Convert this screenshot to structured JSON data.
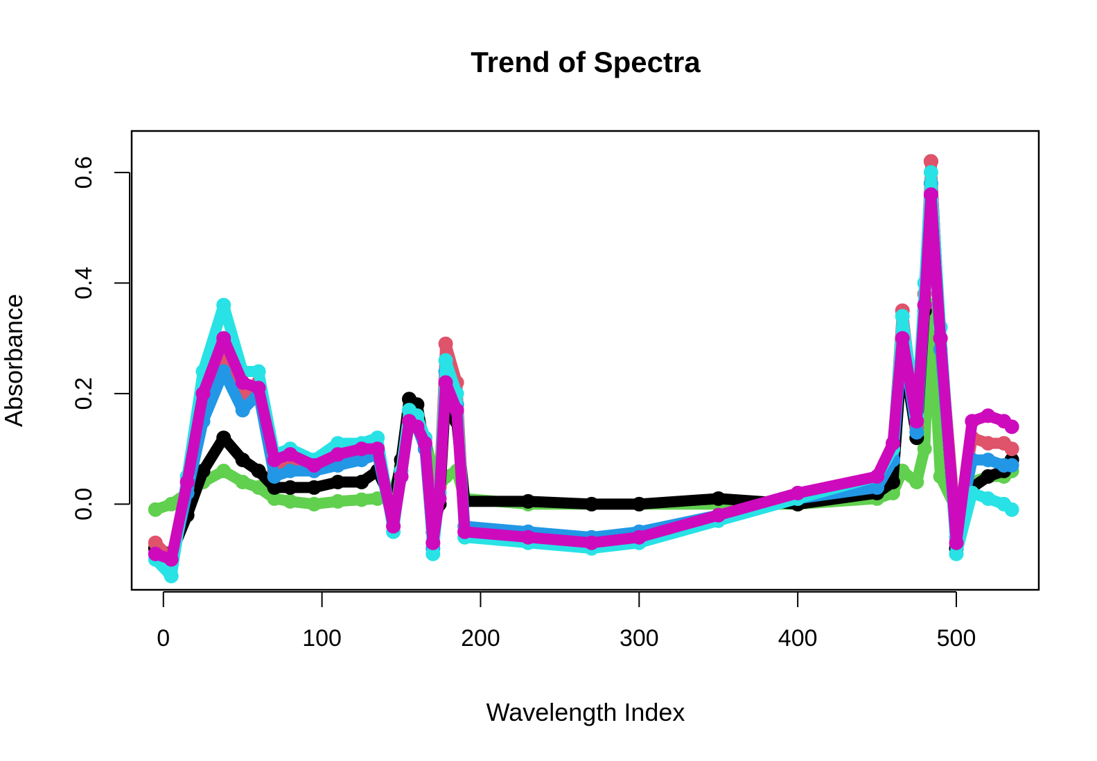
{
  "chart_data": {
    "type": "line",
    "title": "Trend of Spectra",
    "xlabel": "Wavelength Index",
    "ylabel": "Absorbance",
    "xlim": [
      -20,
      552
    ],
    "ylim": [
      -0.155,
      0.675
    ],
    "xticks": [
      {
        "value": 0,
        "label": "0"
      },
      {
        "value": 100,
        "label": "100"
      },
      {
        "value": 200,
        "label": "200"
      },
      {
        "value": 300,
        "label": "300"
      },
      {
        "value": 400,
        "label": "400"
      },
      {
        "value": 500,
        "label": "500"
      }
    ],
    "yticks": [
      {
        "value": 0.0,
        "label": "0.0"
      },
      {
        "value": 0.2,
        "label": "0.2"
      },
      {
        "value": 0.4,
        "label": "0.4"
      },
      {
        "value": 0.6,
        "label": "0.6"
      }
    ],
    "grid": false,
    "legend": "none",
    "series_colors": [
      "#000000",
      "#DF536B",
      "#61D04F",
      "#2297E6",
      "#28E2E5",
      "#CD0BBC"
    ],
    "series": [
      {
        "color": "#61D04F",
        "x": [
          -5,
          5,
          15,
          25,
          38,
          50,
          60,
          70,
          80,
          95,
          110,
          125,
          135,
          145,
          150,
          155,
          160,
          165,
          170,
          174,
          178,
          185,
          190,
          230,
          270,
          300,
          350,
          400,
          450,
          460,
          466,
          475,
          480,
          484,
          490,
          500,
          510,
          520,
          530,
          535
        ],
        "y": [
          -0.01,
          0.0,
          0.02,
          0.04,
          0.06,
          0.04,
          0.03,
          0.01,
          0.005,
          0.0,
          0.005,
          0.008,
          0.01,
          0.02,
          0.07,
          0.14,
          0.15,
          0.12,
          0.06,
          0.03,
          0.05,
          0.06,
          0.01,
          0.0,
          0.0,
          0.0,
          0.0,
          0.0,
          0.01,
          0.02,
          0.06,
          0.04,
          0.1,
          0.36,
          0.05,
          -0.01,
          0.04,
          0.05,
          0.05,
          0.06
        ]
      },
      {
        "color": "#000000",
        "x": [
          -5,
          5,
          15,
          25,
          38,
          50,
          60,
          70,
          80,
          95,
          110,
          125,
          135,
          145,
          150,
          155,
          160,
          165,
          170,
          174,
          178,
          185,
          190,
          230,
          270,
          300,
          350,
          400,
          450,
          460,
          466,
          475,
          480,
          484,
          490,
          500,
          510,
          520,
          530,
          535
        ],
        "y": [
          -0.08,
          -0.09,
          -0.02,
          0.06,
          0.12,
          0.08,
          0.06,
          0.03,
          0.03,
          0.03,
          0.04,
          0.04,
          0.06,
          0.0,
          0.08,
          0.19,
          0.18,
          0.1,
          -0.05,
          0.0,
          0.2,
          0.15,
          0.005,
          0.005,
          0.0,
          0.0,
          0.01,
          0.0,
          0.02,
          0.04,
          0.28,
          0.12,
          0.35,
          0.62,
          0.3,
          -0.08,
          0.03,
          0.05,
          0.06,
          0.08
        ]
      },
      {
        "color": "#DF536B",
        "x": [
          -5,
          5,
          15,
          25,
          38,
          50,
          60,
          70,
          80,
          95,
          110,
          125,
          135,
          145,
          150,
          155,
          160,
          165,
          170,
          174,
          178,
          185,
          190,
          230,
          270,
          300,
          350,
          400,
          450,
          460,
          466,
          475,
          480,
          484,
          490,
          500,
          510,
          520,
          530,
          535
        ],
        "y": [
          -0.07,
          -0.1,
          0.03,
          0.18,
          0.28,
          0.2,
          0.22,
          0.06,
          0.07,
          0.07,
          0.08,
          0.09,
          0.1,
          -0.04,
          0.06,
          0.17,
          0.16,
          0.12,
          -0.07,
          0.03,
          0.29,
          0.22,
          -0.05,
          -0.06,
          -0.07,
          -0.06,
          -0.02,
          0.01,
          0.04,
          0.1,
          0.35,
          0.14,
          0.38,
          0.62,
          0.3,
          -0.05,
          0.12,
          0.11,
          0.11,
          0.1
        ]
      },
      {
        "color": "#2297E6",
        "x": [
          -5,
          5,
          15,
          25,
          38,
          50,
          60,
          70,
          80,
          95,
          110,
          125,
          135,
          145,
          150,
          155,
          160,
          165,
          170,
          174,
          178,
          185,
          190,
          230,
          270,
          300,
          350,
          400,
          450,
          460,
          466,
          475,
          480,
          484,
          490,
          500,
          510,
          520,
          530,
          535
        ],
        "y": [
          -0.09,
          -0.11,
          0.02,
          0.15,
          0.24,
          0.17,
          0.2,
          0.05,
          0.06,
          0.06,
          0.07,
          0.08,
          0.09,
          -0.04,
          0.05,
          0.15,
          0.14,
          0.1,
          -0.08,
          0.02,
          0.24,
          0.18,
          -0.04,
          -0.05,
          -0.06,
          -0.05,
          -0.02,
          0.01,
          0.03,
          0.08,
          0.3,
          0.13,
          0.36,
          0.58,
          0.28,
          -0.06,
          0.08,
          0.08,
          0.07,
          0.07
        ]
      },
      {
        "color": "#28E2E5",
        "x": [
          -5,
          5,
          15,
          25,
          38,
          50,
          60,
          70,
          80,
          95,
          110,
          125,
          135,
          145,
          150,
          155,
          160,
          165,
          170,
          174,
          178,
          185,
          190,
          230,
          270,
          300,
          350,
          400,
          450,
          460,
          466,
          475,
          480,
          484,
          490,
          500,
          510,
          520,
          530,
          535
        ],
        "y": [
          -0.1,
          -0.13,
          0.05,
          0.24,
          0.36,
          0.24,
          0.24,
          0.09,
          0.1,
          0.08,
          0.11,
          0.11,
          0.12,
          -0.05,
          0.06,
          0.17,
          0.16,
          0.12,
          -0.09,
          0.02,
          0.26,
          0.2,
          -0.06,
          -0.07,
          -0.08,
          -0.07,
          -0.03,
          0.01,
          0.05,
          0.1,
          0.34,
          0.16,
          0.4,
          0.6,
          0.32,
          -0.09,
          0.02,
          0.01,
          0.0,
          -0.01
        ]
      },
      {
        "color": "#CD0BBC",
        "x": [
          -5,
          5,
          15,
          25,
          38,
          50,
          60,
          70,
          80,
          95,
          110,
          125,
          135,
          145,
          150,
          155,
          160,
          165,
          170,
          174,
          178,
          185,
          190,
          230,
          270,
          300,
          350,
          400,
          450,
          460,
          466,
          475,
          480,
          484,
          490,
          500,
          510,
          520,
          530,
          535
        ],
        "y": [
          -0.09,
          -0.1,
          0.04,
          0.2,
          0.3,
          0.22,
          0.21,
          0.08,
          0.09,
          0.07,
          0.09,
          0.1,
          0.1,
          -0.04,
          0.05,
          0.15,
          0.14,
          0.11,
          -0.07,
          0.01,
          0.22,
          0.17,
          -0.05,
          -0.06,
          -0.07,
          -0.06,
          -0.02,
          0.02,
          0.05,
          0.11,
          0.3,
          0.15,
          0.36,
          0.56,
          0.3,
          -0.07,
          0.15,
          0.16,
          0.15,
          0.14
        ]
      }
    ]
  }
}
